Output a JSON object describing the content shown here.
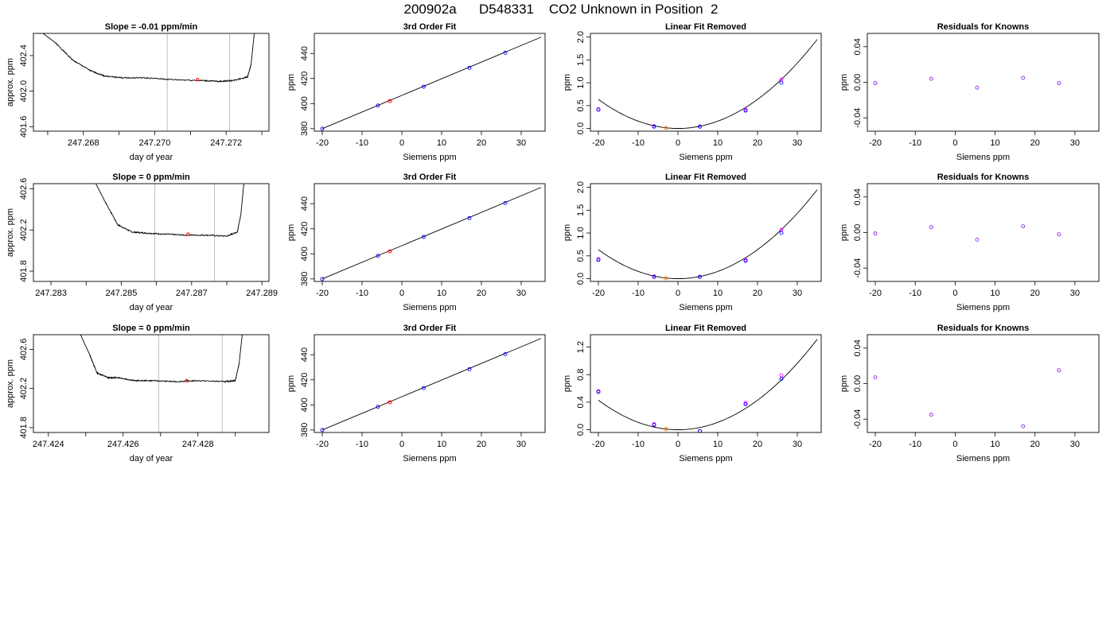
{
  "page_title": "200902a      D548331    CO2 Unknown in Position  2",
  "colors": {
    "trace": "#000000",
    "cursor_lines": "#bebebe",
    "known": "#0000ff",
    "unknown": "#ff0000",
    "unknown_dot": "#ff7f00",
    "known_alt": "#ff00ff",
    "residual": "#8a2be2"
  },
  "chart_data": [
    {
      "id": "r1c1",
      "type": "line",
      "title": "Slope =  -0.01  ppm/min",
      "xlabel": "day of year",
      "ylabel": "approx. ppm",
      "xlim": [
        247.2666,
        247.2732
      ],
      "ylim": [
        401.55,
        402.65
      ],
      "xticks": [
        "247.268",
        "247.270",
        "247.272"
      ],
      "xtick_values": [
        247.268,
        247.27,
        247.272
      ],
      "yticks": [
        "401.6",
        "402.0",
        "402.4"
      ],
      "ytick_values": [
        401.6,
        402.0,
        402.4
      ],
      "minor_xticks": [
        247.267,
        247.269,
        247.271,
        247.273
      ],
      "series": [
        {
          "x": [
            247.2667,
            247.2672,
            247.2677,
            247.2682,
            247.2686,
            247.2691,
            247.2697,
            247.2705,
            247.2713,
            247.2718,
            247.2722,
            247.2726,
            247.2727,
            247.2728
          ],
          "y": [
            402.7,
            402.55,
            402.35,
            402.23,
            402.17,
            402.15,
            402.15,
            402.13,
            402.12,
            402.11,
            402.12,
            402.16,
            402.3,
            402.7
          ]
        }
      ],
      "vlines": [
        247.27035,
        247.2721
      ],
      "marker": {
        "x": 247.2712,
        "y": 402.13
      },
      "noise_amp": 0.007,
      "noise_seed": 1
    },
    {
      "id": "r1c2",
      "type": "scatter",
      "title": "3rd Order Fit",
      "xlabel": "Siemens ppm",
      "ylabel": "ppm",
      "xlim": [
        -22,
        36
      ],
      "ylim": [
        378,
        456
      ],
      "xticks": [
        "-20",
        "-10",
        "0",
        "10",
        "20",
        "30"
      ],
      "xtick_values": [
        -20,
        -10,
        0,
        10,
        20,
        30
      ],
      "yticks": [
        "380",
        "400",
        "420",
        "440"
      ],
      "ytick_values": [
        380,
        400,
        420,
        440
      ],
      "line": {
        "x": [
          -20,
          35
        ],
        "y": [
          380,
          453
        ]
      },
      "known": {
        "x": [
          -20,
          -6,
          5.5,
          17,
          26
        ],
        "y": [
          380,
          398.5,
          413.5,
          428.5,
          440.5
        ]
      },
      "unknown": {
        "x": [
          -3
        ],
        "y": [
          402
        ]
      }
    },
    {
      "id": "r1c3",
      "type": "scatter",
      "title": "Linear Fit Removed",
      "xlabel": "Siemens ppm",
      "ylabel": "ppm",
      "xlim": [
        -22,
        36
      ],
      "ylim": [
        -0.06,
        2.08
      ],
      "xticks": [
        "-20",
        "-10",
        "0",
        "10",
        "20",
        "30"
      ],
      "xtick_values": [
        -20,
        -10,
        0,
        10,
        20,
        30
      ],
      "yticks": [
        "0.0",
        "0.5",
        "1.0",
        "1.5",
        "2.0"
      ],
      "ytick_values": [
        0,
        0.5,
        1.0,
        1.5,
        2.0
      ],
      "curve": {
        "xmin": -20,
        "xmax": 35,
        "vertex": 0,
        "coeff": 0.00159
      },
      "known": {
        "x": [
          -20,
          -6,
          5.5,
          17,
          26
        ],
        "y": [
          0.41,
          0.04,
          0.04,
          0.39,
          1.0
        ]
      },
      "known_alt": {
        "x": [
          -20,
          -6,
          5.5,
          17,
          26
        ],
        "y": [
          0.42,
          0.05,
          0.04,
          0.41,
          1.07
        ]
      },
      "unknown": {
        "x": [
          -3
        ],
        "y": [
          0.01
        ]
      }
    },
    {
      "id": "r1c4",
      "type": "scatter",
      "title": "Residuals for Knowns",
      "xlabel": "Siemens ppm",
      "ylabel": "ppm",
      "xlim": [
        -22,
        36
      ],
      "ylim": [
        -0.055,
        0.055
      ],
      "xticks": [
        "-20",
        "-10",
        "0",
        "10",
        "20",
        "30"
      ],
      "xtick_values": [
        -20,
        -10,
        0,
        10,
        20,
        30
      ],
      "yticks": [
        "-0.04",
        "0.00",
        "0.04"
      ],
      "ytick_values": [
        -0.04,
        0.0,
        0.04
      ],
      "residuals": {
        "x": [
          -20,
          -6,
          5.5,
          17,
          26
        ],
        "y": [
          -0.001,
          0.004,
          -0.006,
          0.005,
          -0.001
        ]
      }
    },
    {
      "id": "r2c1",
      "type": "line",
      "title": "Slope =  0  ppm/min",
      "xlabel": "day of year",
      "ylabel": "approx. ppm",
      "xlim": [
        247.2825,
        247.2892
      ],
      "ylim": [
        401.7,
        402.65
      ],
      "xticks": [
        "247.283",
        "247.285",
        "247.287",
        "247.289"
      ],
      "xtick_values": [
        247.283,
        247.285,
        247.287,
        247.289
      ],
      "yticks": [
        "401.8",
        "402.2",
        "402.6"
      ],
      "ytick_values": [
        401.8,
        402.2,
        402.6
      ],
      "minor_xticks": [
        247.284,
        247.286,
        247.288
      ],
      "series": [
        {
          "x": [
            247.2842,
            247.2845,
            247.2849,
            247.2853,
            247.2857,
            247.2862,
            247.2868,
            247.2874,
            247.288,
            247.2883,
            247.2884,
            247.2885
          ],
          "y": [
            402.7,
            402.5,
            402.25,
            402.18,
            402.17,
            402.16,
            402.15,
            402.15,
            402.14,
            402.18,
            402.35,
            402.7
          ]
        }
      ],
      "vlines": [
        247.28595,
        247.28765
      ],
      "marker": {
        "x": 247.2869,
        "y": 402.16
      },
      "noise_amp": 0.006,
      "noise_seed": 7
    },
    {
      "id": "r2c2",
      "type": "scatter",
      "title": "3rd Order Fit",
      "xlabel": "Siemens ppm",
      "ylabel": "ppm",
      "xlim": [
        -22,
        36
      ],
      "ylim": [
        378,
        456
      ],
      "xticks": [
        "-20",
        "-10",
        "0",
        "10",
        "20",
        "30"
      ],
      "xtick_values": [
        -20,
        -10,
        0,
        10,
        20,
        30
      ],
      "yticks": [
        "380",
        "400",
        "420",
        "440"
      ],
      "ytick_values": [
        380,
        400,
        420,
        440
      ],
      "line": {
        "x": [
          -20,
          35
        ],
        "y": [
          380,
          453
        ]
      },
      "known": {
        "x": [
          -20,
          -6,
          5.5,
          17,
          26
        ],
        "y": [
          380,
          398.5,
          413.5,
          428.5,
          440.5
        ]
      },
      "unknown": {
        "x": [
          -3
        ],
        "y": [
          402
        ]
      }
    },
    {
      "id": "r2c3",
      "type": "scatter",
      "title": "Linear Fit Removed",
      "xlabel": "Siemens ppm",
      "ylabel": "ppm",
      "xlim": [
        -22,
        36
      ],
      "ylim": [
        -0.06,
        2.08
      ],
      "xticks": [
        "-20",
        "-10",
        "0",
        "10",
        "20",
        "30"
      ],
      "xtick_values": [
        -20,
        -10,
        0,
        10,
        20,
        30
      ],
      "yticks": [
        "0.0",
        "0.5",
        "1.0",
        "1.5",
        "2.0"
      ],
      "ytick_values": [
        0,
        0.5,
        1.0,
        1.5,
        2.0
      ],
      "curve": {
        "xmin": -20,
        "xmax": 35,
        "vertex": 0,
        "coeff": 0.00159
      },
      "known": {
        "x": [
          -20,
          -6,
          5.5,
          17,
          26
        ],
        "y": [
          0.41,
          0.04,
          0.04,
          0.39,
          1.0
        ]
      },
      "known_alt": {
        "x": [
          -20,
          -6,
          5.5,
          17,
          26
        ],
        "y": [
          0.43,
          0.05,
          0.04,
          0.41,
          1.07
        ]
      },
      "unknown": {
        "x": [
          -3
        ],
        "y": [
          0.01
        ]
      }
    },
    {
      "id": "r2c4",
      "type": "scatter",
      "title": "Residuals for Knowns",
      "xlabel": "Siemens ppm",
      "ylabel": "ppm",
      "xlim": [
        -22,
        36
      ],
      "ylim": [
        -0.055,
        0.055
      ],
      "xticks": [
        "-20",
        "-10",
        "0",
        "10",
        "20",
        "30"
      ],
      "xtick_values": [
        -20,
        -10,
        0,
        10,
        20,
        30
      ],
      "yticks": [
        "-0.04",
        "0.00",
        "0.04"
      ],
      "ytick_values": [
        -0.04,
        0.0,
        0.04
      ],
      "residuals": {
        "x": [
          -20,
          -6,
          5.5,
          17,
          26
        ],
        "y": [
          -0.001,
          0.006,
          -0.008,
          0.007,
          -0.002
        ]
      }
    },
    {
      "id": "r3c1",
      "type": "line",
      "title": "Slope =  0  ppm/min",
      "xlabel": "day of year",
      "ylabel": "approx. ppm",
      "xlim": [
        247.4236,
        247.4299
      ],
      "ylim": [
        401.75,
        402.75
      ],
      "xticks": [
        "247.424",
        "247.426",
        "247.428"
      ],
      "xtick_values": [
        247.424,
        247.426,
        247.428
      ],
      "yticks": [
        "401.8",
        "402.2",
        "402.6"
      ],
      "ytick_values": [
        401.8,
        402.2,
        402.6
      ],
      "minor_xticks": [
        247.425,
        247.427,
        247.429
      ],
      "series": [
        {
          "x": [
            247.4248,
            247.4251,
            247.4253,
            247.4256,
            247.4259,
            247.4263,
            247.4268,
            247.4274,
            247.428,
            247.4287,
            247.429,
            247.4291,
            247.4292
          ],
          "y": [
            402.8,
            402.55,
            402.36,
            402.31,
            402.31,
            402.28,
            402.28,
            402.27,
            402.28,
            402.27,
            402.28,
            402.45,
            402.8
          ]
        }
      ],
      "vlines": [
        247.42695,
        247.42865
      ],
      "marker": {
        "x": 247.4277,
        "y": 402.28
      },
      "noise_amp": 0.006,
      "noise_seed": 13
    },
    {
      "id": "r3c2",
      "type": "scatter",
      "title": "3rd Order Fit",
      "xlabel": "Siemens ppm",
      "ylabel": "ppm",
      "xlim": [
        -22,
        36
      ],
      "ylim": [
        378,
        456
      ],
      "xticks": [
        "-20",
        "-10",
        "0",
        "10",
        "20",
        "30"
      ],
      "xtick_values": [
        -20,
        -10,
        0,
        10,
        20,
        30
      ],
      "yticks": [
        "380",
        "400",
        "420",
        "440"
      ],
      "ytick_values": [
        380,
        400,
        420,
        440
      ],
      "line": {
        "x": [
          -20,
          35
        ],
        "y": [
          380,
          453
        ]
      },
      "known": {
        "x": [
          -20,
          -6,
          5.5,
          17,
          26
        ],
        "y": [
          380,
          398.5,
          413.5,
          428.5,
          440.5
        ]
      },
      "unknown": {
        "x": [
          -3
        ],
        "y": [
          402
        ]
      }
    },
    {
      "id": "r3c3",
      "type": "scatter",
      "title": "Linear Fit Removed",
      "xlabel": "Siemens ppm",
      "ylabel": "ppm",
      "xlim": [
        -22,
        36
      ],
      "ylim": [
        -0.04,
        1.38
      ],
      "xticks": [
        "-20",
        "-10",
        "0",
        "10",
        "20",
        "30"
      ],
      "xtick_values": [
        -20,
        -10,
        0,
        10,
        20,
        30
      ],
      "yticks": [
        "0.0",
        "0.4",
        "0.8",
        "1.2"
      ],
      "ytick_values": [
        0,
        0.4,
        0.8,
        1.2
      ],
      "curve": {
        "xmin": -20,
        "xmax": 35,
        "vertex": 0,
        "coeff": 0.001072
      },
      "known": {
        "x": [
          -20,
          -6,
          5.5,
          17,
          26
        ],
        "y": [
          0.55,
          0.07,
          -0.02,
          0.37,
          0.74
        ]
      },
      "known_alt": {
        "x": [
          -20,
          -6,
          5.5,
          17,
          26
        ],
        "y": [
          0.56,
          0.08,
          -0.02,
          0.39,
          0.79
        ]
      },
      "unknown": {
        "x": [
          -3
        ],
        "y": [
          0.01
        ]
      }
    },
    {
      "id": "r3c4",
      "type": "scatter",
      "title": "Residuals for Knowns",
      "xlabel": "Siemens ppm",
      "ylabel": "ppm",
      "xlim": [
        -22,
        36
      ],
      "ylim": [
        -0.055,
        0.055
      ],
      "xticks": [
        "-20",
        "-10",
        "0",
        "10",
        "20",
        "30"
      ],
      "xtick_values": [
        -20,
        -10,
        0,
        10,
        20,
        30
      ],
      "yticks": [
        "-0.04",
        "0.00",
        "0.04"
      ],
      "ytick_values": [
        -0.04,
        0.0,
        0.04
      ],
      "residuals": {
        "x": [
          -20,
          -6,
          17,
          26
        ],
        "y": [
          0.007,
          -0.035,
          -0.048,
          0.015
        ]
      }
    }
  ]
}
